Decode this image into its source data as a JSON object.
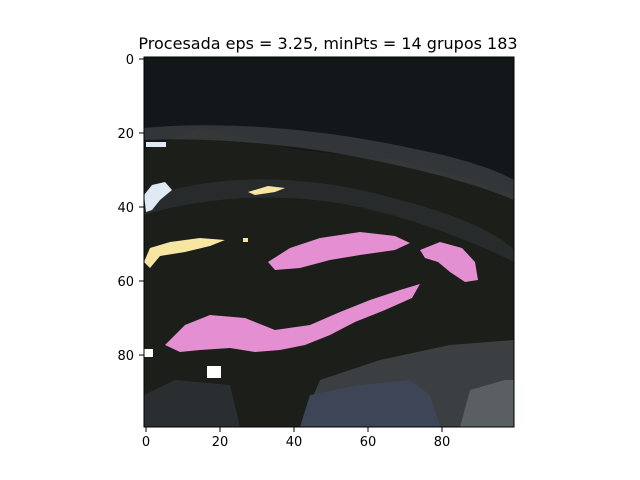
{
  "figure": {
    "title": "Procesada eps = 3.25, minPts = 14 grupos 183"
  },
  "image": {
    "description_only_visual": true,
    "palette": {
      "background_dark": "#131719",
      "ground_dark": "#1b1e19",
      "gray_mid": "#3b3f41",
      "gray_light": "#5a5f62",
      "blue_gray": "#3e4556",
      "pink": "#e48fd1",
      "yellow": "#f7e6a1",
      "light_blue": "#dfeaf5",
      "white": "#ffffff"
    }
  },
  "axes": {
    "x_ticks": [
      "0",
      "20",
      "40",
      "60",
      "80"
    ],
    "y_ticks": [
      "0",
      "20",
      "40",
      "60",
      "80"
    ],
    "x_range": [
      0,
      100
    ],
    "y_range": [
      0,
      100
    ]
  }
}
